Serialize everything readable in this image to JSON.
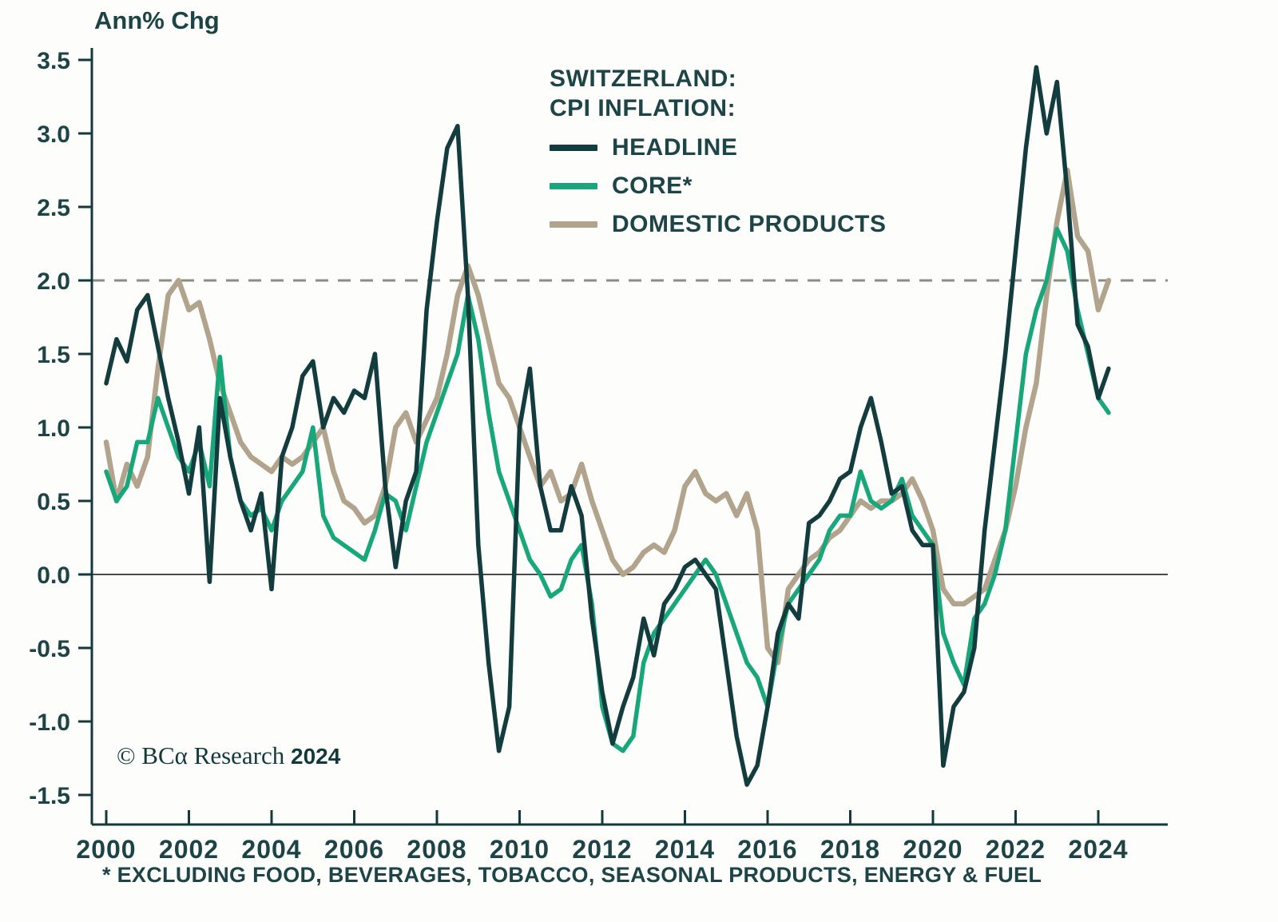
{
  "colors": {
    "background": "#fdfdfb",
    "axis": "#123a3c",
    "text": "#1c4345",
    "dashed_line": "#8d8d85",
    "zero_line": "#4a4a4a",
    "headline": "#133C3E",
    "core": "#17A77B",
    "domestic": "#B1A38C"
  },
  "legend": {
    "title_line1": "SWITZERLAND:",
    "title_line2": "CPI INFLATION:",
    "entries": [
      {
        "label": "HEADLINE",
        "color": "#133C3E"
      },
      {
        "label": "CORE*",
        "color": "#17A77B"
      },
      {
        "label": "DOMESTIC PRODUCTS",
        "color": "#B1A38C"
      }
    ]
  },
  "copyright": {
    "brand": "© BCα Research",
    "year": "2024"
  },
  "footnote": "* EXCLUDING FOOD, BEVERAGES, TOBACCO, SEASONAL PRODUCTS, ENERGY & FUEL",
  "chart_data": {
    "type": "line",
    "title": "SWITZERLAND: CPI INFLATION",
    "ylabel": "Ann% Chg",
    "xlabel": "",
    "x_start": 2000.0,
    "x_step": 0.25,
    "xlim": [
      1999.65,
      2025.65
    ],
    "ylim": [
      -1.5,
      3.5
    ],
    "y_ticks": [
      -1.5,
      -1.0,
      -0.5,
      0.0,
      0.5,
      1.0,
      1.5,
      2.0,
      2.5,
      3.0,
      3.5
    ],
    "x_ticks": [
      2000,
      2002,
      2004,
      2006,
      2008,
      2010,
      2012,
      2014,
      2016,
      2018,
      2020,
      2022,
      2024
    ],
    "grid": false,
    "legend_position": "top-center",
    "reference_lines": [
      {
        "y": 2.0,
        "style": "dashed"
      },
      {
        "y": 0.0,
        "style": "solid"
      }
    ],
    "series": [
      {
        "name": "HEADLINE",
        "color": "#133C3E",
        "width": 5.5,
        "values": [
          1.3,
          1.6,
          1.45,
          1.8,
          1.9,
          1.55,
          1.2,
          0.9,
          0.55,
          1.0,
          -0.05,
          1.2,
          0.8,
          0.5,
          0.3,
          0.55,
          -0.1,
          0.8,
          1.0,
          1.35,
          1.45,
          1.0,
          1.2,
          1.1,
          1.25,
          1.2,
          1.5,
          0.6,
          0.05,
          0.5,
          0.7,
          1.8,
          2.4,
          2.9,
          3.05,
          1.9,
          0.2,
          -0.6,
          -1.2,
          -0.9,
          1.0,
          1.4,
          0.6,
          0.3,
          0.3,
          0.6,
          0.4,
          -0.3,
          -0.8,
          -1.15,
          -0.9,
          -0.7,
          -0.3,
          -0.55,
          -0.2,
          -0.1,
          0.05,
          0.1,
          0.0,
          -0.1,
          -0.6,
          -1.1,
          -1.43,
          -1.3,
          -0.9,
          -0.4,
          -0.2,
          -0.3,
          0.35,
          0.4,
          0.5,
          0.65,
          0.7,
          1.0,
          1.2,
          0.9,
          0.55,
          0.6,
          0.3,
          0.2,
          0.2,
          -1.3,
          -0.9,
          -0.8,
          -0.5,
          0.3,
          0.9,
          1.5,
          2.2,
          2.9,
          3.45,
          3.0,
          3.35,
          2.6,
          1.7,
          1.55,
          1.2,
          1.4
        ]
      },
      {
        "name": "CORE*",
        "color": "#17A77B",
        "width": 5.5,
        "values": [
          0.7,
          0.5,
          0.6,
          0.9,
          0.9,
          1.2,
          1.0,
          0.8,
          0.7,
          0.9,
          0.6,
          1.48,
          0.8,
          0.5,
          0.4,
          0.45,
          0.3,
          0.5,
          0.6,
          0.7,
          1.0,
          0.4,
          0.25,
          0.2,
          0.15,
          0.1,
          0.3,
          0.55,
          0.5,
          0.3,
          0.6,
          0.9,
          1.1,
          1.3,
          1.5,
          1.9,
          1.6,
          1.1,
          0.7,
          0.5,
          0.3,
          0.1,
          0.0,
          -0.15,
          -0.1,
          0.1,
          0.2,
          -0.2,
          -0.9,
          -1.15,
          -1.2,
          -1.1,
          -0.6,
          -0.4,
          -0.3,
          -0.2,
          -0.1,
          0.0,
          0.1,
          0.0,
          -0.2,
          -0.4,
          -0.6,
          -0.7,
          -0.9,
          -0.5,
          -0.2,
          -0.1,
          0.0,
          0.1,
          0.3,
          0.4,
          0.4,
          0.7,
          0.5,
          0.45,
          0.5,
          0.65,
          0.4,
          0.3,
          0.2,
          -0.4,
          -0.6,
          -0.75,
          -0.3,
          -0.2,
          0.0,
          0.3,
          0.9,
          1.5,
          1.8,
          2.0,
          2.35,
          2.2,
          1.8,
          1.5,
          1.2,
          1.1
        ]
      },
      {
        "name": "DOMESTIC PRODUCTS",
        "color": "#B1A38C",
        "width": 6.5,
        "values": [
          0.9,
          0.5,
          0.75,
          0.6,
          0.8,
          1.4,
          1.9,
          2.0,
          1.8,
          1.85,
          1.6,
          1.3,
          1.1,
          0.9,
          0.8,
          0.75,
          0.7,
          0.8,
          0.75,
          0.8,
          0.9,
          1.0,
          0.7,
          0.5,
          0.45,
          0.35,
          0.4,
          0.6,
          1.0,
          1.1,
          0.9,
          1.05,
          1.2,
          1.5,
          1.9,
          2.1,
          1.9,
          1.6,
          1.3,
          1.2,
          1.0,
          0.8,
          0.6,
          0.7,
          0.5,
          0.55,
          0.75,
          0.5,
          0.3,
          0.1,
          0.0,
          0.05,
          0.15,
          0.2,
          0.15,
          0.3,
          0.6,
          0.7,
          0.55,
          0.5,
          0.55,
          0.4,
          0.55,
          0.3,
          -0.5,
          -0.6,
          -0.1,
          0.0,
          0.1,
          0.15,
          0.25,
          0.3,
          0.4,
          0.5,
          0.45,
          0.5,
          0.5,
          0.55,
          0.65,
          0.5,
          0.3,
          -0.1,
          -0.2,
          -0.2,
          -0.15,
          -0.1,
          0.1,
          0.3,
          0.6,
          1.0,
          1.3,
          1.9,
          2.4,
          2.75,
          2.3,
          2.2,
          1.8,
          2.0
        ]
      }
    ]
  }
}
